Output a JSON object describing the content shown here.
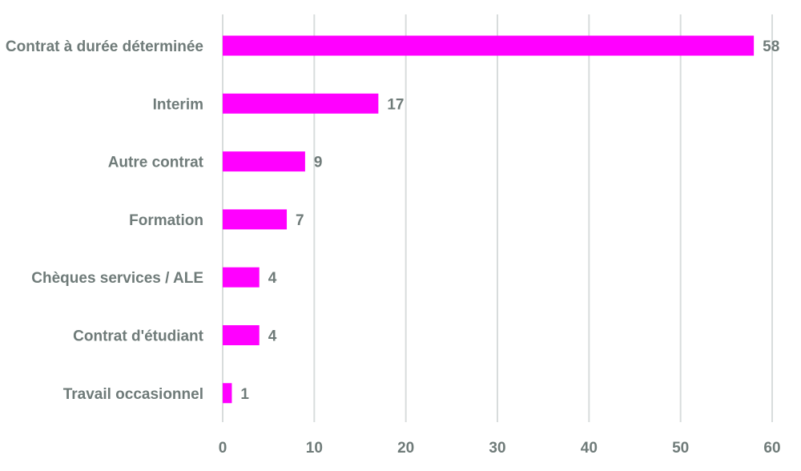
{
  "chart_data": {
    "type": "bar",
    "orientation": "horizontal",
    "categories": [
      "Contrat à durée déterminée",
      "Interim",
      "Autre contrat",
      "Formation",
      "Chèques services / ALE",
      "Contrat d'étudiant",
      "Travail occasionnel"
    ],
    "values": [
      58,
      17,
      9,
      7,
      4,
      4,
      1
    ],
    "value_labels": [
      "58",
      "17",
      "9",
      "7",
      "4",
      "4",
      "1"
    ],
    "xlim": [
      0,
      60
    ],
    "xticks": [
      0,
      10,
      20,
      30,
      40,
      50,
      60
    ],
    "xtick_labels": [
      "0",
      "10",
      "20",
      "30",
      "40",
      "50",
      "60"
    ],
    "grid": "vertical",
    "legend": "none",
    "title": "",
    "xlabel": "",
    "ylabel": "",
    "colors": {
      "bar": "#ff00ff",
      "text": "#6f7b79",
      "grid": "#d8dcdc"
    }
  }
}
